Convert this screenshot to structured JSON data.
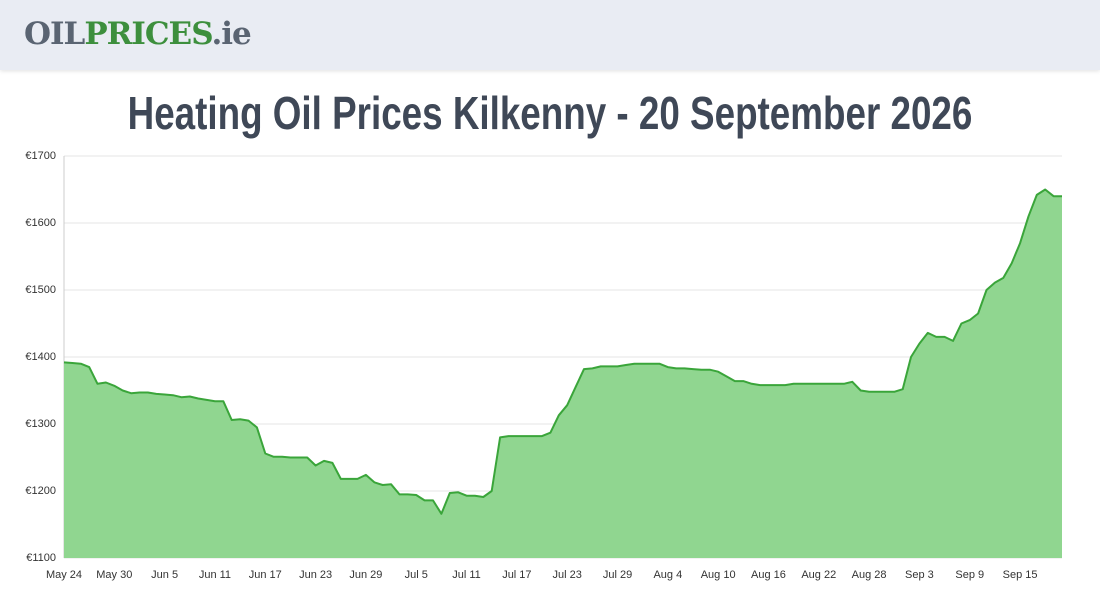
{
  "logo": {
    "part1": "OIL",
    "part2": "PRICES",
    "part3": ".ie"
  },
  "chart_data": {
    "type": "area",
    "title": "Heating Oil Prices Kilkenny - 20 September 2026",
    "color": "#3aa53a",
    "fill": "#90d690",
    "grid": true,
    "categories": [
      "May 24",
      null,
      null,
      null,
      null,
      null,
      "May 30",
      null,
      null,
      null,
      null,
      null,
      "Jun 5",
      null,
      null,
      null,
      null,
      null,
      "Jun 11",
      null,
      null,
      null,
      null,
      null,
      "Jun 17",
      null,
      null,
      null,
      null,
      null,
      "Jun 23",
      null,
      null,
      null,
      null,
      null,
      "Jun 29",
      null,
      null,
      null,
      null,
      null,
      "Jul 5",
      null,
      null,
      null,
      null,
      null,
      "Jul 11",
      null,
      null,
      null,
      null,
      null,
      "Jul 17",
      null,
      null,
      null,
      null,
      null,
      "Jul 23",
      null,
      null,
      null,
      null,
      null,
      "Jul 29",
      null,
      null,
      null,
      null,
      null,
      "Aug 4",
      null,
      null,
      null,
      null,
      null,
      "Aug 10",
      null,
      null,
      null,
      null,
      null,
      "Aug 16",
      null,
      null,
      null,
      null,
      null,
      "Aug 22",
      null,
      null,
      null,
      null,
      null,
      "Aug 28",
      null,
      null,
      null,
      null,
      null,
      "Sep 3",
      null,
      null,
      null,
      null,
      null,
      "Sep 9",
      null,
      null,
      null,
      null,
      null,
      "Sep 15",
      null,
      null,
      null,
      null,
      null
    ],
    "values": [
      1392,
      1391,
      1390,
      1385,
      1360,
      1362,
      1357,
      1350,
      1346,
      1347,
      1347,
      1345,
      1344,
      1343,
      1340,
      1341,
      1338,
      1336,
      1334,
      1334,
      1306,
      1307,
      1305,
      1295,
      1256,
      1251,
      1251,
      1250,
      1250,
      1250,
      1238,
      1245,
      1242,
      1218,
      1218,
      1218,
      1224,
      1213,
      1209,
      1210,
      1195,
      1195,
      1194,
      1186,
      1186,
      1166,
      1197,
      1198,
      1193,
      1193,
      1191,
      1200,
      1280,
      1282,
      1282,
      1282,
      1282,
      1282,
      1287,
      1313,
      1328,
      1355,
      1382,
      1383,
      1386,
      1386,
      1386,
      1388,
      1390,
      1390,
      1390,
      1390,
      1385,
      1383,
      1383,
      1382,
      1381,
      1381,
      1378,
      1371,
      1364,
      1364,
      1360,
      1358,
      1358,
      1358,
      1358,
      1360,
      1360,
      1360,
      1360,
      1360,
      1360,
      1360,
      1363,
      1350,
      1348,
      1348,
      1348,
      1348,
      1352,
      1400,
      1420,
      1436,
      1430,
      1430,
      1424,
      1450,
      1455,
      1465,
      1500,
      1511,
      1518,
      1540,
      1570,
      1610,
      1642,
      1650,
      1640,
      1640
    ],
    "ylim": [
      1100,
      1700
    ],
    "yticks": [
      {
        "value": 1100,
        "label": "€1100"
      },
      {
        "value": 1200,
        "label": "€1200"
      },
      {
        "value": 1300,
        "label": "€1300"
      },
      {
        "value": 1400,
        "label": "€1400"
      },
      {
        "value": 1500,
        "label": "€1500"
      },
      {
        "value": 1600,
        "label": "€1600"
      },
      {
        "value": 1700,
        "label": "€1700"
      }
    ]
  }
}
